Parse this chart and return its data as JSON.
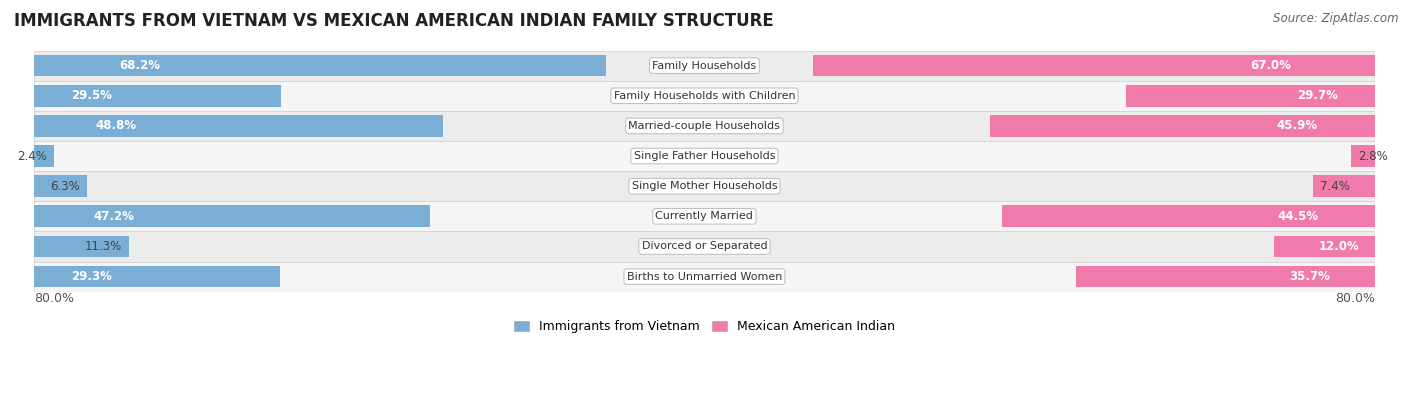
{
  "title": "IMMIGRANTS FROM VIETNAM VS MEXICAN AMERICAN INDIAN FAMILY STRUCTURE",
  "source": "Source: ZipAtlas.com",
  "categories": [
    "Family Households",
    "Family Households with Children",
    "Married-couple Households",
    "Single Father Households",
    "Single Mother Households",
    "Currently Married",
    "Divorced or Separated",
    "Births to Unmarried Women"
  ],
  "vietnam_values": [
    68.2,
    29.5,
    48.8,
    2.4,
    6.3,
    47.2,
    11.3,
    29.3
  ],
  "mexican_values": [
    67.0,
    29.7,
    45.9,
    2.8,
    7.4,
    44.5,
    12.0,
    35.7
  ],
  "vietnam_color": "#7aaed4",
  "mexican_color": "#f07aaa",
  "vietnam_label": "Immigrants from Vietnam",
  "mexican_label": "Mexican American Indian",
  "max_value": 80.0,
  "axis_label_left": "80.0%",
  "axis_label_right": "80.0%",
  "title_fontsize": 12,
  "source_fontsize": 8.5,
  "bar_label_fontsize": 8.5,
  "category_fontsize": 8.0,
  "row_colors": [
    "#ececec",
    "#f5f5f5"
  ],
  "row_border_color": "#d0d0d0"
}
